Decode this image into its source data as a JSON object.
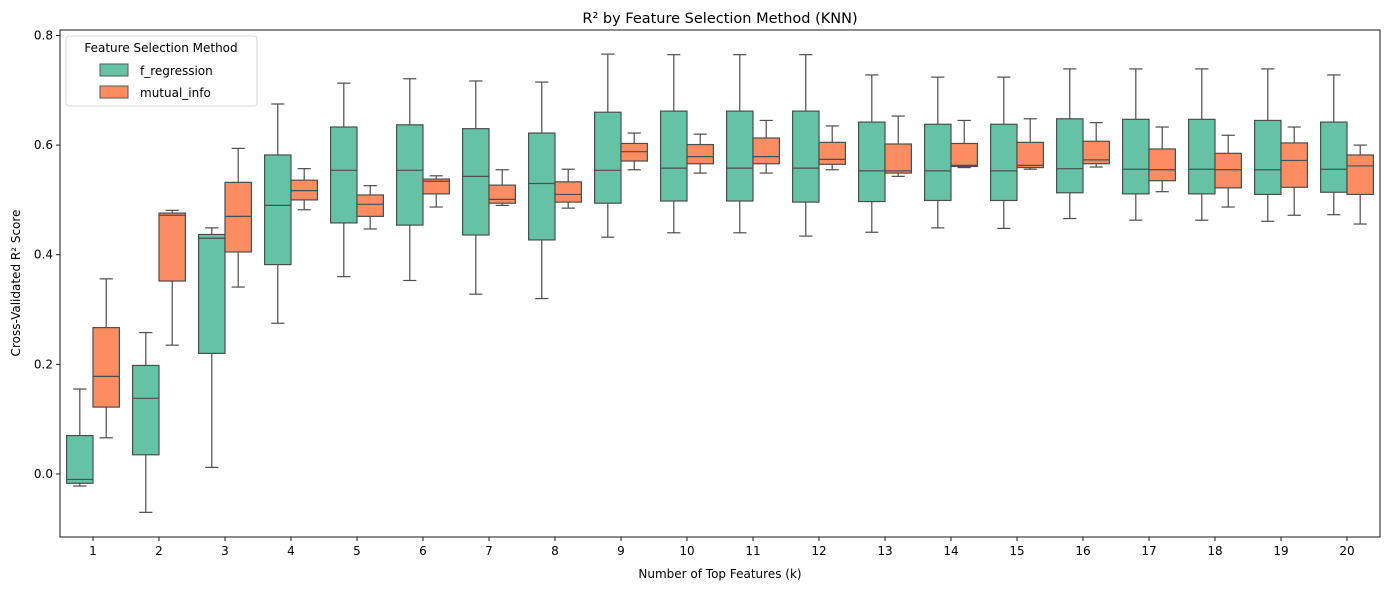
{
  "chart_data": {
    "type": "box",
    "title": "R² by Feature Selection Method (KNN)",
    "xlabel": "Number of Top Features (k)",
    "ylabel": "Cross-Validated R² Score",
    "categories": [
      "1",
      "2",
      "3",
      "4",
      "5",
      "6",
      "7",
      "8",
      "9",
      "10",
      "11",
      "12",
      "13",
      "14",
      "15",
      "16",
      "17",
      "18",
      "19",
      "20"
    ],
    "ylim": [
      -0.115,
      0.81
    ],
    "yticks": [
      "0.0",
      "0.2",
      "0.4",
      "0.6",
      "0.8"
    ],
    "grid": false,
    "legend": {
      "title": "Feature Selection Method",
      "placement": "top-left"
    },
    "series": [
      {
        "name": "f_regression",
        "color": "#66c2a5",
        "boxes": [
          {
            "lo": -0.022,
            "q1": -0.017,
            "med": -0.01,
            "q3": 0.07,
            "hi": 0.155
          },
          {
            "lo": -0.07,
            "q1": 0.035,
            "med": 0.138,
            "q3": 0.198,
            "hi": 0.258
          },
          {
            "lo": 0.012,
            "q1": 0.22,
            "med": 0.43,
            "q3": 0.437,
            "hi": 0.449
          },
          {
            "lo": 0.275,
            "q1": 0.382,
            "med": 0.49,
            "q3": 0.582,
            "hi": 0.675
          },
          {
            "lo": 0.36,
            "q1": 0.458,
            "med": 0.554,
            "q3": 0.633,
            "hi": 0.713
          },
          {
            "lo": 0.353,
            "q1": 0.454,
            "med": 0.554,
            "q3": 0.637,
            "hi": 0.721
          },
          {
            "lo": 0.328,
            "q1": 0.436,
            "med": 0.543,
            "q3": 0.63,
            "hi": 0.717
          },
          {
            "lo": 0.32,
            "q1": 0.427,
            "med": 0.53,
            "q3": 0.622,
            "hi": 0.715
          },
          {
            "lo": 0.432,
            "q1": 0.494,
            "med": 0.554,
            "q3": 0.66,
            "hi": 0.766
          },
          {
            "lo": 0.44,
            "q1": 0.498,
            "med": 0.558,
            "q3": 0.662,
            "hi": 0.765
          },
          {
            "lo": 0.44,
            "q1": 0.498,
            "med": 0.558,
            "q3": 0.662,
            "hi": 0.765
          },
          {
            "lo": 0.434,
            "q1": 0.496,
            "med": 0.558,
            "q3": 0.662,
            "hi": 0.765
          },
          {
            "lo": 0.441,
            "q1": 0.497,
            "med": 0.553,
            "q3": 0.642,
            "hi": 0.728
          },
          {
            "lo": 0.449,
            "q1": 0.499,
            "med": 0.553,
            "q3": 0.638,
            "hi": 0.724
          },
          {
            "lo": 0.448,
            "q1": 0.499,
            "med": 0.553,
            "q3": 0.638,
            "hi": 0.724
          },
          {
            "lo": 0.466,
            "q1": 0.513,
            "med": 0.557,
            "q3": 0.648,
            "hi": 0.739
          },
          {
            "lo": 0.463,
            "q1": 0.511,
            "med": 0.556,
            "q3": 0.647,
            "hi": 0.739
          },
          {
            "lo": 0.463,
            "q1": 0.511,
            "med": 0.556,
            "q3": 0.647,
            "hi": 0.739
          },
          {
            "lo": 0.461,
            "q1": 0.51,
            "med": 0.555,
            "q3": 0.645,
            "hi": 0.739
          },
          {
            "lo": 0.473,
            "q1": 0.514,
            "med": 0.556,
            "q3": 0.642,
            "hi": 0.728
          }
        ]
      },
      {
        "name": "mutual_info",
        "color": "#fc8d62",
        "boxes": [
          {
            "lo": 0.066,
            "q1": 0.122,
            "med": 0.178,
            "q3": 0.267,
            "hi": 0.356
          },
          {
            "lo": 0.235,
            "q1": 0.352,
            "med": 0.472,
            "q3": 0.476,
            "hi": 0.481
          },
          {
            "lo": 0.341,
            "q1": 0.405,
            "med": 0.47,
            "q3": 0.532,
            "hi": 0.594
          },
          {
            "lo": 0.482,
            "q1": 0.5,
            "med": 0.517,
            "q3": 0.536,
            "hi": 0.557
          },
          {
            "lo": 0.447,
            "q1": 0.47,
            "med": 0.492,
            "q3": 0.509,
            "hi": 0.526
          },
          {
            "lo": 0.487,
            "q1": 0.511,
            "med": 0.534,
            "q3": 0.538,
            "hi": 0.544
          },
          {
            "lo": 0.49,
            "q1": 0.494,
            "med": 0.501,
            "q3": 0.527,
            "hi": 0.555
          },
          {
            "lo": 0.485,
            "q1": 0.496,
            "med": 0.51,
            "q3": 0.533,
            "hi": 0.556
          },
          {
            "lo": 0.555,
            "q1": 0.571,
            "med": 0.588,
            "q3": 0.603,
            "hi": 0.622
          },
          {
            "lo": 0.549,
            "q1": 0.566,
            "med": 0.579,
            "q3": 0.601,
            "hi": 0.62
          },
          {
            "lo": 0.549,
            "q1": 0.566,
            "med": 0.579,
            "q3": 0.613,
            "hi": 0.645
          },
          {
            "lo": 0.555,
            "q1": 0.565,
            "med": 0.574,
            "q3": 0.605,
            "hi": 0.635
          },
          {
            "lo": 0.543,
            "q1": 0.549,
            "med": 0.553,
            "q3": 0.602,
            "hi": 0.653
          },
          {
            "lo": 0.559,
            "q1": 0.561,
            "med": 0.563,
            "q3": 0.603,
            "hi": 0.645
          },
          {
            "lo": 0.556,
            "q1": 0.559,
            "med": 0.563,
            "q3": 0.605,
            "hi": 0.648
          },
          {
            "lo": 0.56,
            "q1": 0.566,
            "med": 0.573,
            "q3": 0.607,
            "hi": 0.641
          },
          {
            "lo": 0.515,
            "q1": 0.535,
            "med": 0.555,
            "q3": 0.593,
            "hi": 0.633
          },
          {
            "lo": 0.487,
            "q1": 0.522,
            "med": 0.555,
            "q3": 0.585,
            "hi": 0.618
          },
          {
            "lo": 0.472,
            "q1": 0.523,
            "med": 0.572,
            "q3": 0.604,
            "hi": 0.633
          },
          {
            "lo": 0.456,
            "q1": 0.51,
            "med": 0.562,
            "q3": 0.582,
            "hi": 0.6
          }
        ]
      }
    ]
  }
}
